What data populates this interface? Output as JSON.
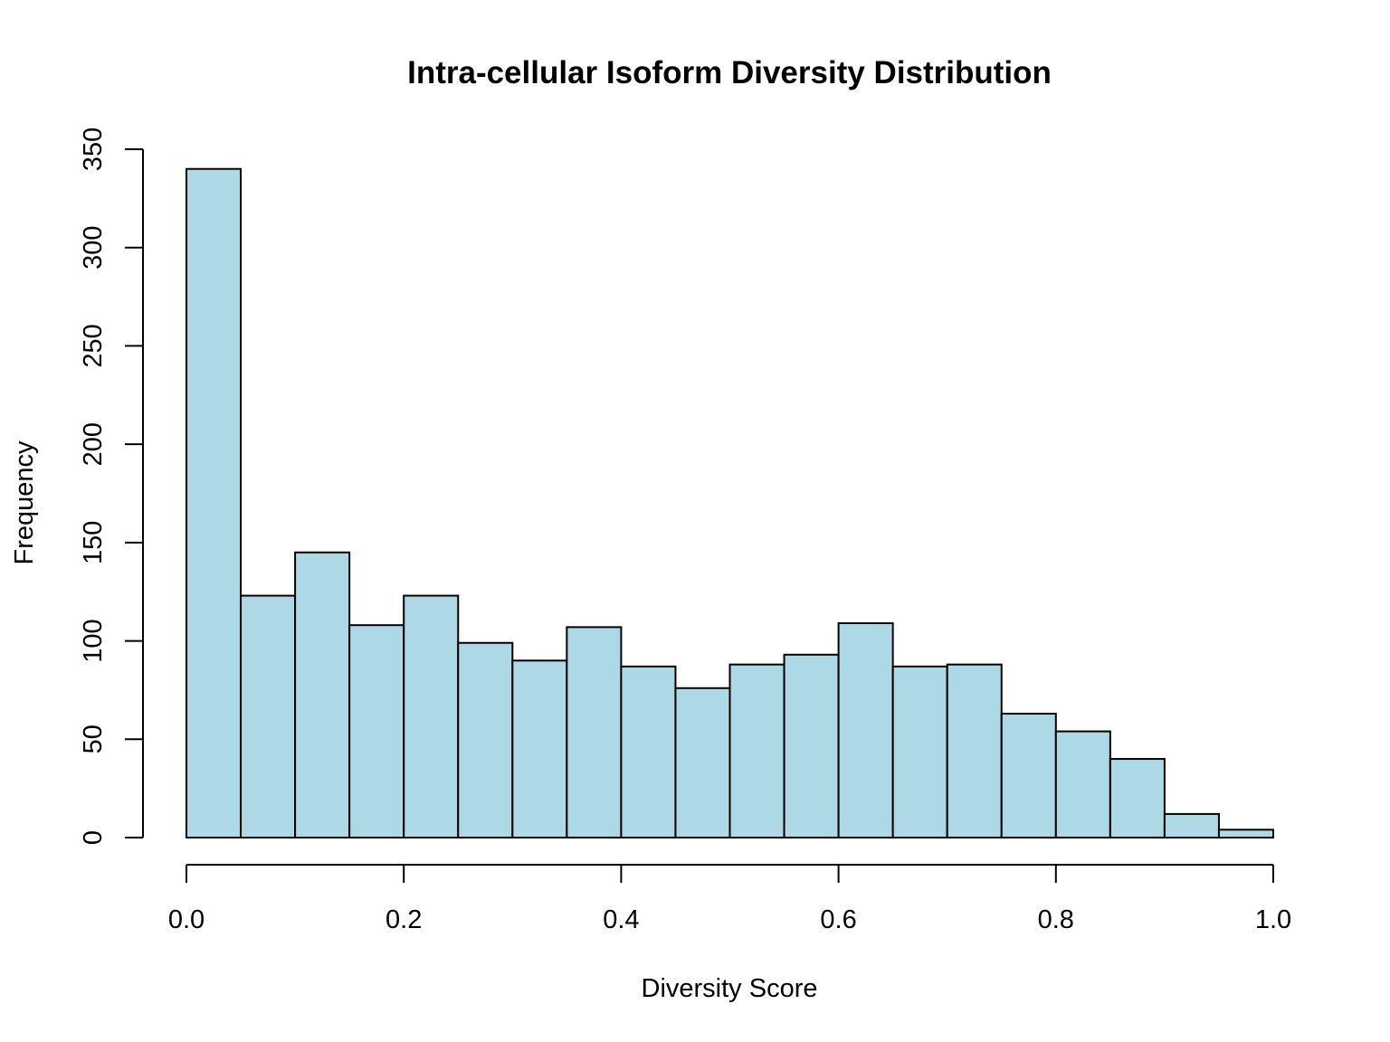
{
  "chart_data": {
    "type": "bar",
    "title": "Intra-cellular Isoform Diversity Distribution",
    "xlabel": "Diversity Score",
    "ylabel": "Frequency",
    "bin_edges": [
      0.0,
      0.05,
      0.1,
      0.15,
      0.2,
      0.25,
      0.3,
      0.35,
      0.4,
      0.45,
      0.5,
      0.55,
      0.6,
      0.65,
      0.7,
      0.75,
      0.8,
      0.85,
      0.9,
      0.95,
      1.0
    ],
    "values": [
      340,
      123,
      145,
      108,
      123,
      99,
      90,
      107,
      87,
      76,
      88,
      93,
      109,
      87,
      88,
      63,
      54,
      40,
      12,
      4
    ],
    "xlim": [
      0.0,
      1.0
    ],
    "ylim": [
      0,
      350
    ],
    "x_ticks": [
      0.0,
      0.2,
      0.4,
      0.6,
      0.8,
      1.0
    ],
    "x_tick_labels": [
      "0.0",
      "0.2",
      "0.4",
      "0.6",
      "0.8",
      "1.0"
    ],
    "y_ticks": [
      0,
      50,
      100,
      150,
      200,
      250,
      300,
      350
    ],
    "y_tick_labels": [
      "0",
      "50",
      "100",
      "150",
      "200",
      "250",
      "300",
      "350"
    ],
    "bar_color": "#ADD8E6",
    "edge_color": "#000000",
    "grid": false,
    "legend": "none"
  }
}
